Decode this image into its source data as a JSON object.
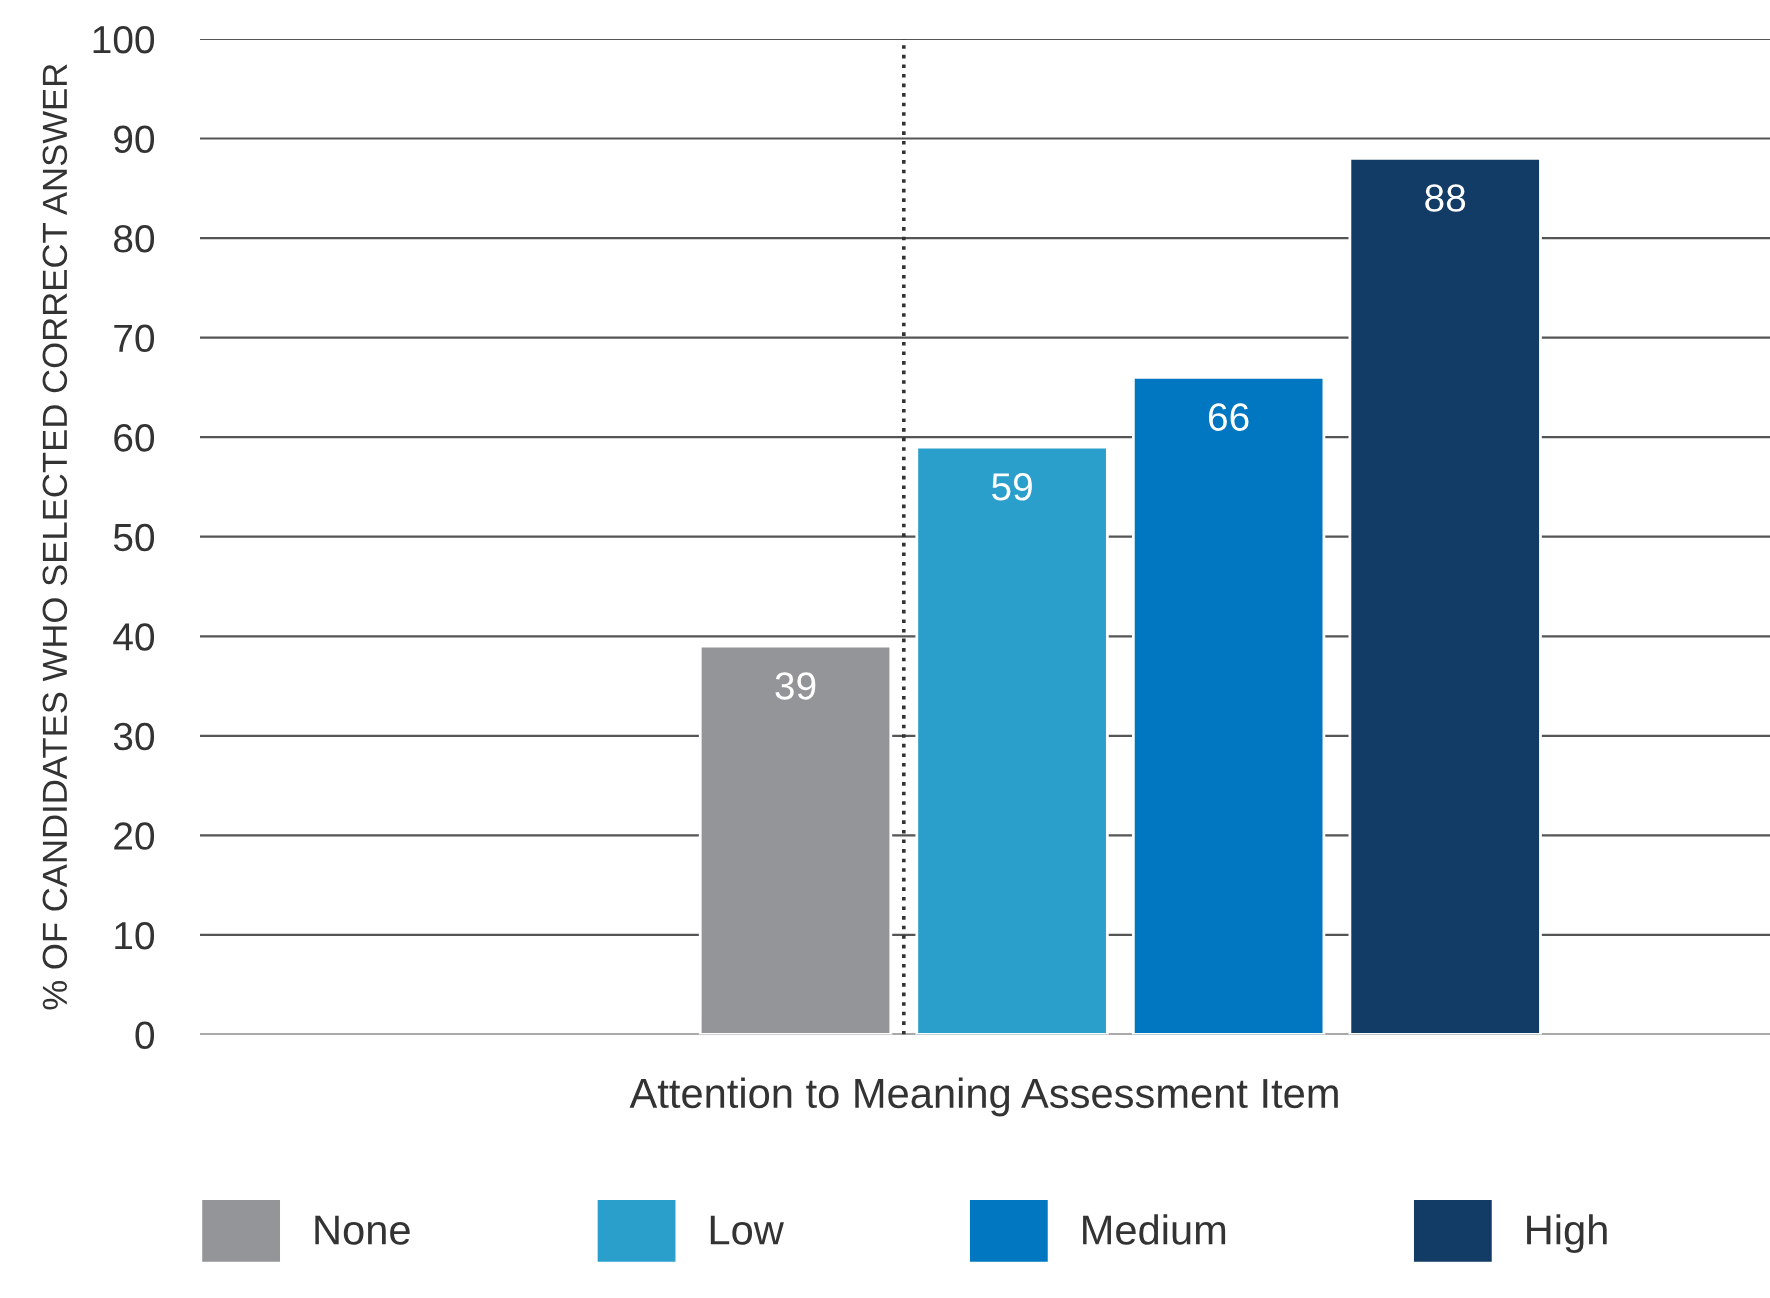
{
  "chart_data": {
    "type": "bar",
    "xlabel": "Attention to Meaning Assessment Item",
    "ylabel": "% OF CANDIDATES WHO SELECTED CORRECT ANSWER",
    "categories": [
      null
    ],
    "series": [
      {
        "name": "None",
        "color": "#939598",
        "values": [
          39
        ]
      },
      {
        "name": "Low",
        "color": "#2a9fcb",
        "values": [
          59
        ]
      },
      {
        "name": "Medium",
        "color": "#0077c0",
        "values": [
          66
        ]
      },
      {
        "name": "High",
        "color": "#123b66",
        "values": [
          88
        ]
      }
    ],
    "ylim": [
      0,
      100
    ],
    "yticks": [
      0,
      10,
      20,
      30,
      40,
      50,
      60,
      70,
      80,
      90,
      100
    ],
    "grid": "y",
    "legend": "bottom",
    "data_labels": true
  }
}
